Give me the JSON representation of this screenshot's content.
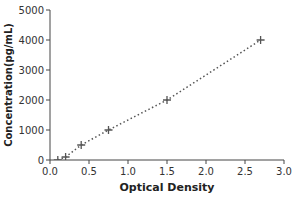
{
  "chart_data": {
    "type": "line",
    "xlabel": "Optical Density",
    "ylabel": "Concentration(pg/mL)",
    "x": [
      0.1,
      0.2,
      0.4,
      0.75,
      1.5,
      2.7
    ],
    "values": [
      0,
      100,
      500,
      1000,
      2000,
      4000
    ],
    "color": "#555555",
    "marker": "+",
    "line_style": "dotted",
    "grid": false,
    "xlim": [
      0,
      3
    ],
    "ylim": [
      0,
      5000
    ],
    "xticks": [
      {
        "value": 0,
        "label": "0.0"
      },
      0.5,
      {
        "value": 1,
        "label": "1.0"
      },
      1.5,
      {
        "value": 2,
        "label": "2.0"
      },
      2.5,
      {
        "value": 3,
        "label": "3.0"
      }
    ],
    "yticks": [
      0,
      1000,
      2000,
      3000,
      4000,
      5000
    ]
  }
}
